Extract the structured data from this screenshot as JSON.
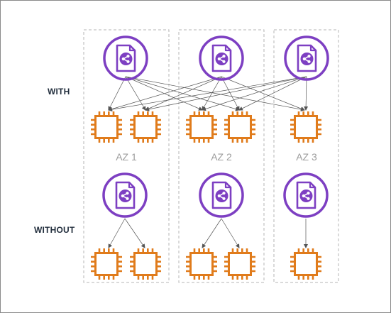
{
  "rows": {
    "with_label": "WITH",
    "without_label": "WITHOUT"
  },
  "zones": [
    {
      "label": "AZ 1"
    },
    {
      "label": "AZ 2"
    },
    {
      "label": "AZ 3"
    }
  ],
  "icons": {
    "load_balancer": "load-balancer-icon",
    "instance": "ec2-instance-icon"
  },
  "colors": {
    "lb": "#7d3fc2",
    "instance": "#e07b1b",
    "zone_border": "#b5b5b5",
    "az_text": "#9c9c9c",
    "arrow": "#555555"
  }
}
